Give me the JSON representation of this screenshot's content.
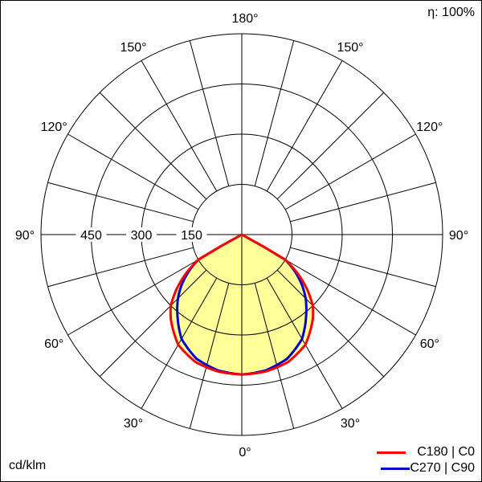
{
  "chart_data": {
    "type": "polar",
    "unit_label": "cd/klm",
    "efficiency_label": "η: 100%",
    "radial_ticks": [
      150,
      300,
      450
    ],
    "radial_max": 600,
    "angle_ticks": [
      "0°",
      "30°",
      "60°",
      "90°",
      "120°",
      "150°",
      "180°"
    ],
    "angle_step_grid": 15,
    "fill_color": "#ffff99",
    "series": [
      {
        "name": "C180 | C0",
        "color": "#ff0000",
        "angles": [
          0,
          10,
          20,
          30,
          40,
          45,
          50,
          55,
          60,
          62,
          90,
          180
        ],
        "values": [
          418,
          415,
          405,
          380,
          330,
          300,
          255,
          205,
          150,
          0,
          0,
          0
        ]
      },
      {
        "name": "C270 | C90",
        "color": "#0000cc",
        "angles": [
          0,
          10,
          20,
          30,
          40,
          45,
          50,
          55,
          60,
          62,
          90,
          180
        ],
        "values": [
          418,
          412,
          395,
          360,
          300,
          270,
          235,
          195,
          150,
          0,
          0,
          0
        ]
      }
    ]
  }
}
